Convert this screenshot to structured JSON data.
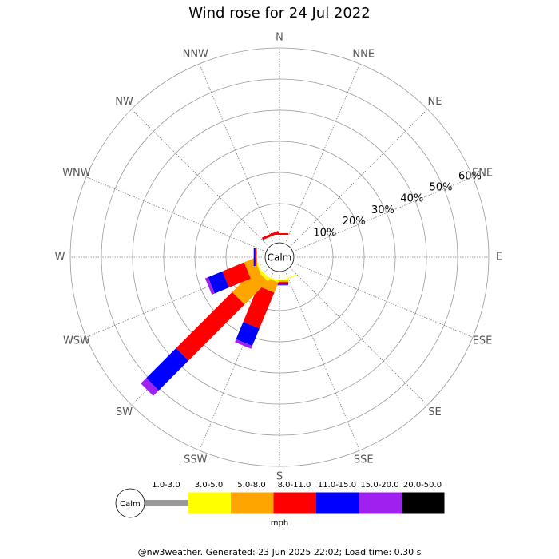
{
  "chart_data": {
    "type": "wind_rose",
    "title": "Wind rose for 24 Jul 2022",
    "directions": [
      "N",
      "NNE",
      "NE",
      "ENE",
      "E",
      "ESE",
      "SE",
      "SSE",
      "S",
      "SSW",
      "SW",
      "WSW",
      "W",
      "WNW",
      "NW",
      "NNW"
    ],
    "series": [
      {
        "name": "1.0-3.0",
        "color": "#999999",
        "values": [
          0,
          0,
          0,
          0,
          0,
          0,
          0,
          0,
          0,
          0,
          0,
          0,
          0,
          0,
          0,
          0
        ]
      },
      {
        "name": "3.0-5.0",
        "color": "#ffff00",
        "values": [
          0,
          0,
          0,
          0,
          0,
          0,
          0,
          0.3,
          0.3,
          0.5,
          1,
          0.5,
          0,
          0,
          0,
          0
        ]
      },
      {
        "name": "5.0-8.0",
        "color": "#ffa500",
        "values": [
          0,
          0,
          0,
          0,
          0,
          0,
          0,
          0,
          0.5,
          3.5,
          10.5,
          3.5,
          0.3,
          0,
          0,
          0
        ]
      },
      {
        "name": "8.0-11.0",
        "color": "#ff0000",
        "values": [
          0.5,
          0,
          0,
          0,
          0,
          0,
          0,
          0,
          0.5,
          12.5,
          25.5,
          7.5,
          0.3,
          0,
          0,
          0.8
        ]
      },
      {
        "name": "11.0-15.0",
        "color": "#0000ff",
        "values": [
          0,
          0,
          0,
          0,
          0,
          0,
          0,
          0,
          0.4,
          6,
          13.5,
          5,
          0.5,
          0,
          0,
          0
        ]
      },
      {
        "name": "15.0-20.0",
        "color": "#a020f0",
        "values": [
          0,
          0,
          0,
          0,
          0,
          0,
          0,
          0,
          0.2,
          1,
          2.5,
          1,
          0,
          0,
          0,
          0
        ]
      },
      {
        "name": "20.0-50.0",
        "color": "#000000",
        "values": [
          0,
          0,
          0,
          0,
          0,
          0,
          0,
          0,
          0,
          0,
          0,
          0,
          0,
          0,
          0,
          0
        ]
      }
    ],
    "rlim": [
      0,
      60
    ],
    "rticks": [
      {
        "value": 10,
        "label": "10%"
      },
      {
        "value": 20,
        "label": "20%"
      },
      {
        "value": 30,
        "label": "30%"
      },
      {
        "value": 40,
        "label": "40%"
      },
      {
        "value": 50,
        "label": "50%"
      },
      {
        "value": 60,
        "label": "60%"
      }
    ],
    "calm_label": "Calm",
    "unit": "mph",
    "footer": "@nw3weather. Generated: 23 Jun 2025 22:02; Load time: 0.30 s"
  }
}
